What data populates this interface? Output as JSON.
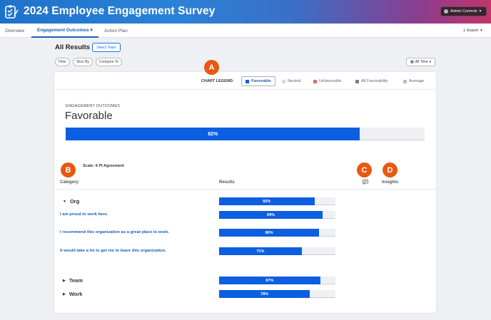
{
  "app": {
    "title": "2024 Employee Engagement Survey",
    "admin_controls": "Admin Controls"
  },
  "tabs": [
    {
      "label": "Overview"
    },
    {
      "label": "Engagement Outcomes"
    },
    {
      "label": "Action Plan"
    }
  ],
  "export_label": "Export",
  "results": {
    "title": "All Results",
    "select_team": "Select Team",
    "filters": [
      "Filter",
      "Slice By",
      "Compare To"
    ],
    "time_range": "All Time"
  },
  "legend": {
    "label": "CHART LEGEND:",
    "items": [
      "Favorable",
      "Neutral",
      "Unfavorable",
      "All Favorability",
      "Average"
    ],
    "colors": {
      "favorable": "#0b5fe0",
      "neutral": "#d6d9de",
      "unfavorable": "#e06a6a",
      "all": "#7a7f87",
      "average": "#b9bdc4"
    }
  },
  "outcome": {
    "section_label": "ENGAGEMENT OUTCOMES",
    "title": "Favorable",
    "value": 82,
    "value_label": "82%"
  },
  "scale_label": "Scale: 6 Pt Agreement",
  "columns": {
    "category": "Category",
    "results": "Results",
    "insights": "Insights"
  },
  "rows": [
    {
      "type": "group",
      "label": "Org",
      "value": 82,
      "value_label": "82%"
    },
    {
      "type": "item",
      "label": "I am proud to work here.",
      "value": 89,
      "value_label": "89%"
    },
    {
      "type": "item",
      "label": "I recommend this organization as a great place to work.",
      "value": 86,
      "value_label": "86%"
    },
    {
      "type": "item",
      "label": "It would take a lot to get me to leave this organization.",
      "value": 71,
      "value_label": "71%"
    },
    {
      "type": "group",
      "label": "Team",
      "value": 87,
      "value_label": "87%"
    },
    {
      "type": "group",
      "label": "Work",
      "value": 78,
      "value_label": "78%"
    }
  ],
  "markers": [
    "A",
    "B",
    "C",
    "D"
  ]
}
